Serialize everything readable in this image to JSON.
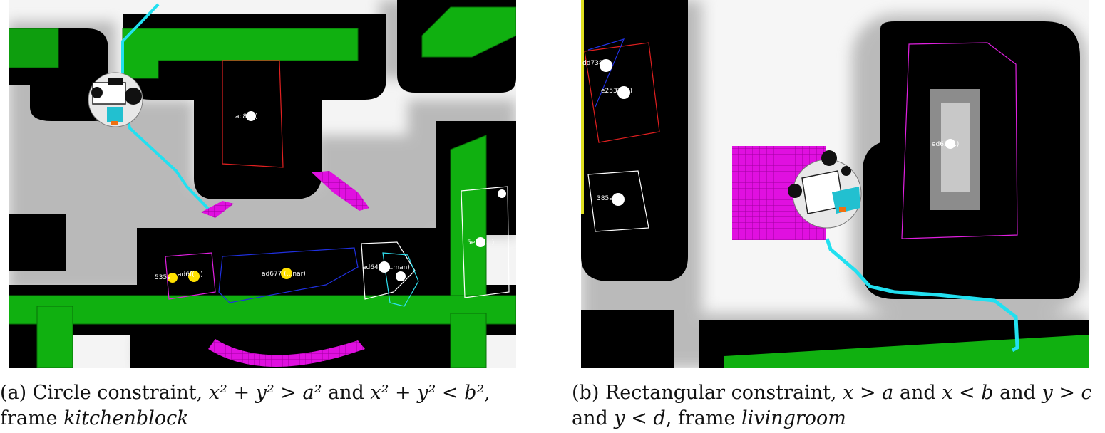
{
  "figure": {
    "panel_a": {
      "caption": {
        "tag": "(a)",
        "text_1": "Circle constraint,",
        "math_1": "x² + y² > a²",
        "text_2": "and",
        "math_2": "x² + y² < b²",
        "text_3": ", frame",
        "frame_name": "kitchenblock"
      },
      "object_labels": [
        "ac8(...)",
        "535a",
        "ad6f(...)",
        "ad677 (...nar)",
        "ad648 (...man)",
        "5e10(...)"
      ]
    },
    "panel_b": {
      "caption": {
        "tag": "(b)",
        "text_1": "Rectangular constraint,",
        "math_1": "x > a",
        "text_2": "and",
        "math_2": "x < b",
        "text_3": "and",
        "math_3": "y > c",
        "text_4": "and",
        "math_4": "y < d",
        "text_5": ", frame",
        "frame_name": "livingroom"
      },
      "object_labels": [
        "dd738",
        "e2532(...)",
        "ed63(...)",
        "385a"
      ]
    },
    "colors": {
      "floor_free": "#ffffff",
      "obstacle": "#000000",
      "furniture": "#10b010",
      "path": "#22e0f0",
      "constraint_region": "#e010e0",
      "object_marker": "#ffe000"
    }
  }
}
